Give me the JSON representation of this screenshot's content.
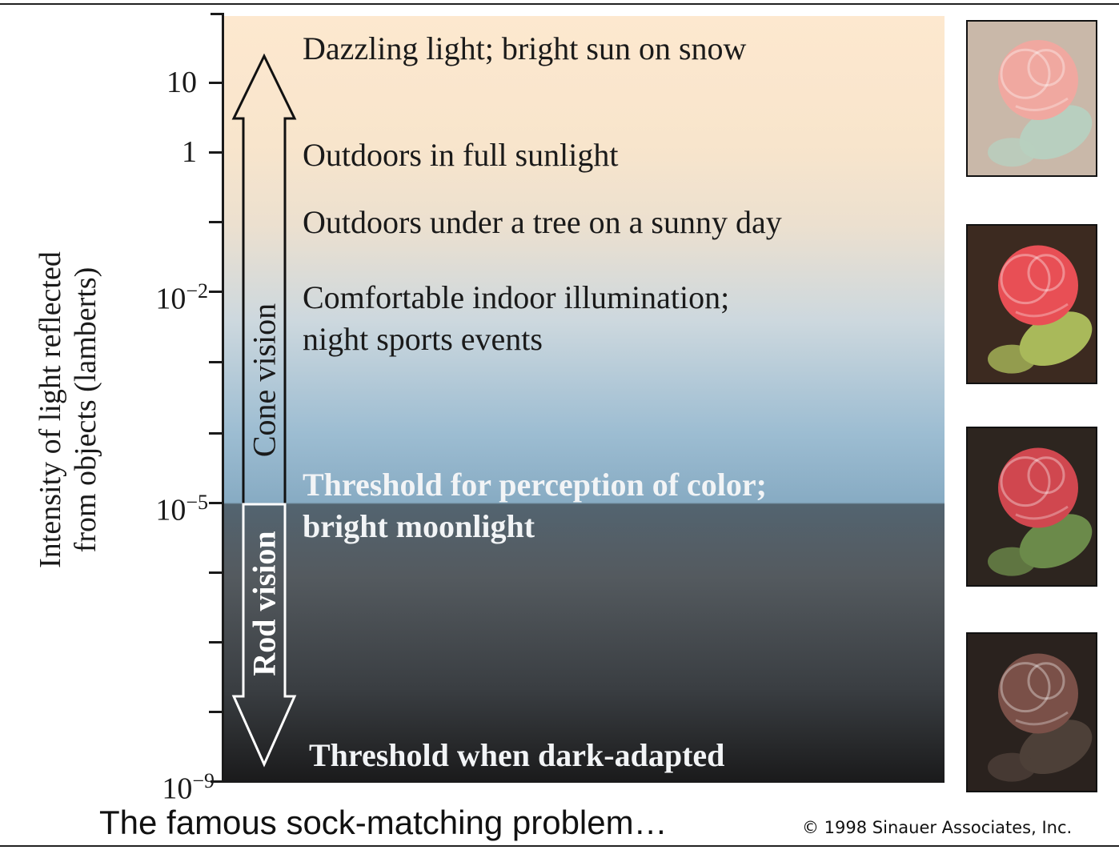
{
  "axis": {
    "label_line1": "Intensity of light reflected",
    "label_line2": "from objects (lamberts)",
    "ticks": [
      {
        "text": "10"
      },
      {
        "text": "1"
      },
      {
        "text": "10",
        "sup": "−2"
      },
      {
        "text": "10",
        "sup": "−5"
      },
      {
        "text": "10",
        "sup": "−9"
      }
    ]
  },
  "levels": [
    {
      "line1": "Dazzling light; bright sun on snow"
    },
    {
      "line1": "Outdoors in full sunlight"
    },
    {
      "line1": "Outdoors under a tree on a sunny day"
    },
    {
      "line1": "Comfortable indoor illumination;",
      "line2": "night sports events"
    },
    {
      "line1": "Threshold for perception of color;",
      "line2": "bright moonlight"
    },
    {
      "line1": "Threshold when dark-adapted"
    }
  ],
  "vision": {
    "cone": "Cone vision",
    "rod": "Rod vision"
  },
  "roses": [
    {
      "brightness": "pale",
      "petal": "#f0a8a0",
      "leaf": "#b8cfbf",
      "bg": "#c9b8a9"
    },
    {
      "brightness": "bright",
      "petal": "#e84f55",
      "leaf": "#a9b95a",
      "bg": "#3c2a20"
    },
    {
      "brightness": "dim",
      "petal": "#d0474f",
      "leaf": "#6b8a4a",
      "bg": "#2d251f"
    },
    {
      "brightness": "dark",
      "petal": "#7a5048",
      "leaf": "#4d4038",
      "bg": "#2a221e"
    }
  ],
  "caption": "The famous sock-matching problem…",
  "copyright": "© 1998 Sinauer Associates, Inc."
}
